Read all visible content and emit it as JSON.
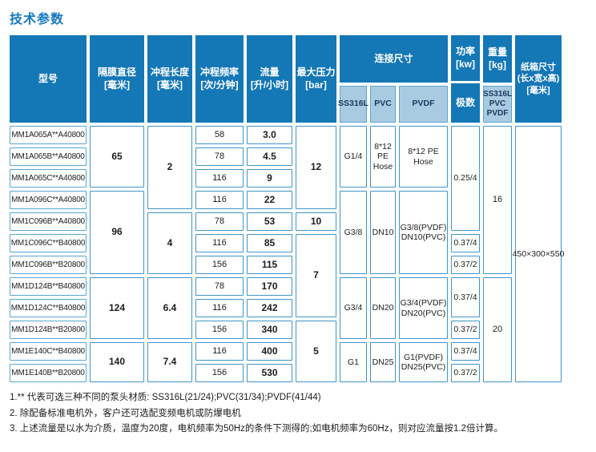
{
  "title": "技术参数",
  "header": {
    "model": "型号",
    "diameter": {
      "label": "隔膜直径",
      "unit": "[毫米]"
    },
    "stroke_length": {
      "label": "冲程长度",
      "unit": "[毫米]"
    },
    "frequency": {
      "label": "冲程频率",
      "unit": "[次/分钟]"
    },
    "flow": {
      "label": "流量",
      "unit": "[升/小时]"
    },
    "pressure": {
      "label": "最大压力",
      "unit": "[bar]"
    },
    "connection": {
      "label": "连接尺寸",
      "materials": [
        "SS316L",
        "PVC",
        "PVDF"
      ]
    },
    "power": {
      "label": "功率",
      "unit": "[kw]",
      "sub": "极数"
    },
    "weight": {
      "label": "重量",
      "unit": "[kg]",
      "materials": [
        "SS316L",
        "PVC",
        "PVDF"
      ]
    },
    "carton": {
      "label": "纸箱尺寸",
      "dims": "(长x宽x高)",
      "unit": "[毫米]"
    }
  },
  "rows": [
    {
      "model": "MM1A065A**A40800",
      "frequency": "58",
      "flow": "3.0"
    },
    {
      "model": "MM1A065B**A40800",
      "frequency": "78",
      "flow": "4.5"
    },
    {
      "model": "MM1A065C**A40800",
      "frequency": "116",
      "flow": "9"
    },
    {
      "model": "MM1A096C**A40800",
      "frequency": "116",
      "flow": "22"
    },
    {
      "model": "MM1C096B**A40800",
      "frequency": "78",
      "flow": "53"
    },
    {
      "model": "MM1C096C**B40800",
      "frequency": "116",
      "flow": "85"
    },
    {
      "model": "MM1C096B**B20800",
      "frequency": "156",
      "flow": "115"
    },
    {
      "model": "MM1D124B**B40800",
      "frequency": "78",
      "flow": "170"
    },
    {
      "model": "MM1D124C**B40800",
      "frequency": "116",
      "flow": "242"
    },
    {
      "model": "MM1D124B**B20800",
      "frequency": "156",
      "flow": "340"
    },
    {
      "model": "MM1E140C**B40800",
      "frequency": "116",
      "flow": "400"
    },
    {
      "model": "MM1E140B**B20800",
      "frequency": "156",
      "flow": "530"
    }
  ],
  "merged": {
    "diameter": [
      {
        "value": "65",
        "rows": "1-3"
      },
      {
        "value": "96",
        "rows": "4-7"
      },
      {
        "value": "124",
        "rows": "8-10"
      },
      {
        "value": "140",
        "rows": "11-12"
      }
    ],
    "stroke_length": [
      {
        "value": "2",
        "rows": "1-4"
      },
      {
        "value": "4",
        "rows": "5-7"
      },
      {
        "value": "6.4",
        "rows": "8-10"
      },
      {
        "value": "7.4",
        "rows": "11-12"
      }
    ],
    "pressure": [
      {
        "value": "12",
        "rows": "1-4"
      },
      {
        "value": "10",
        "rows": "5"
      },
      {
        "value": "7",
        "rows": "6-9"
      },
      {
        "value": "5",
        "rows": "10-12"
      }
    ],
    "conn_ss316l": [
      {
        "value": "G1/4",
        "rows": "1-3"
      },
      {
        "value": "G3/8",
        "rows": "4-7"
      },
      {
        "value": "G3/4",
        "rows": "8-10"
      },
      {
        "value": "G1",
        "rows": "11-12"
      }
    ],
    "conn_pvc": [
      {
        "value": "8*12 PE Hose",
        "rows": "1-3"
      },
      {
        "value": "DN10",
        "rows": "4-7"
      },
      {
        "value": "DN20",
        "rows": "8-10"
      },
      {
        "value": "DN25",
        "rows": "11-12"
      }
    ],
    "conn_pvdf": [
      {
        "value": "8*12 PE Hose",
        "rows": "1-3"
      },
      {
        "value": "G3/8(PVDF) DN10(PVC)",
        "rows": "4-7"
      },
      {
        "value": "G3/4(PVDF) DN20(PVC)",
        "rows": "8-10"
      },
      {
        "value": "G1(PVDF) DN25(PVC)",
        "rows": "11-12"
      }
    ],
    "power": [
      {
        "value": "0.25/4",
        "rows": "1-5"
      },
      {
        "value": "0.37/4",
        "rows": "6"
      },
      {
        "value": "0.37/2",
        "rows": "7"
      },
      {
        "value": "0.37/4",
        "rows": "8-9"
      },
      {
        "value": "0.37/2",
        "rows": "10"
      },
      {
        "value": "0.37/4",
        "rows": "11"
      },
      {
        "value": "0.37/2",
        "rows": "12"
      }
    ],
    "weight": [
      {
        "value": "16",
        "rows": "1-7"
      },
      {
        "value": "20",
        "rows": "8-12"
      }
    ],
    "carton": [
      {
        "value": "450×300×550",
        "rows": "1-12"
      }
    ]
  },
  "notes": [
    "1.** 代表可选三种不同的泵头材质: SS316L(21/24);PVC(31/34);PVDF(41/44)",
    "2. 除配备标准电机外，客户还可选配变频电机或防爆电机",
    "3. 上述流量是以水为介质，温度为20度，电机频率为50Hz的条件下测得的;如电机频率为60Hz，则对应流量按1.2倍计算。"
  ],
  "colors": {
    "header_blue": "#1477b6",
    "light_blue": "#a9cbe2",
    "cell_border_blue": "#3f94c8",
    "title_blue": "#1478c0",
    "text": "#1c1c1c"
  }
}
